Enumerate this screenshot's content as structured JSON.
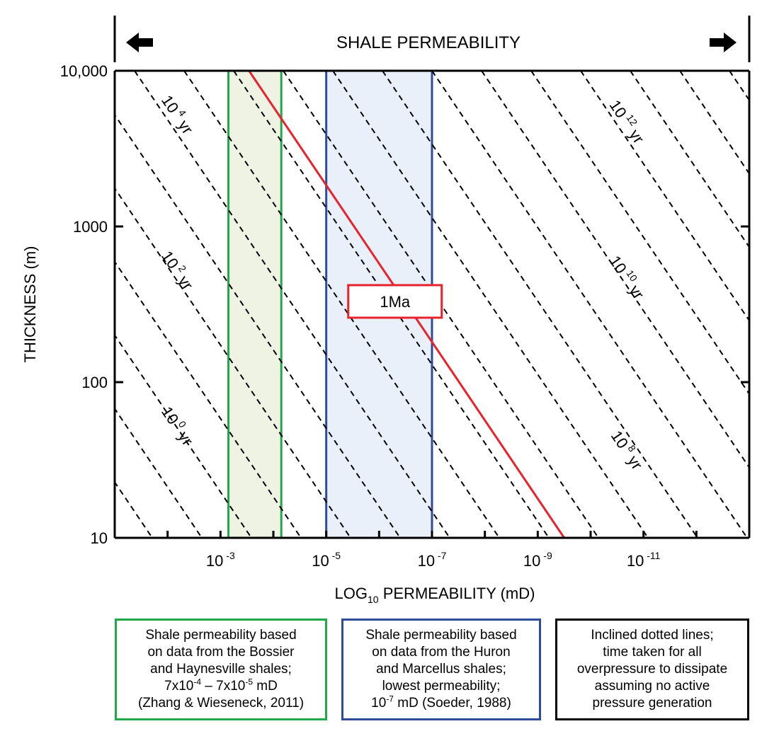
{
  "chart_data": {
    "type": "line",
    "title": "SHALE PERMEABILITY",
    "xlabel": "LOG10 PERMEABILITY (mD)",
    "ylabel": "THICKNESS (m)",
    "x_scale": "log10 permeability exponent (decreasing to the right)",
    "xlim": [
      -1,
      -13
    ],
    "ylim": [
      10,
      10000
    ],
    "y_scale": "log",
    "x_ticks": [
      {
        "base": "10",
        "exp": "-3",
        "value": -3
      },
      {
        "base": "10",
        "exp": "-5",
        "value": -5
      },
      {
        "base": "10",
        "exp": "-7",
        "value": -7
      },
      {
        "base": "10",
        "exp": "-9",
        "value": -9
      },
      {
        "base": "10",
        "exp": "-11",
        "value": -11
      }
    ],
    "y_ticks": [
      {
        "label": "10,000",
        "value": 10000
      },
      {
        "label": "1000",
        "value": 1000
      },
      {
        "label": "100",
        "value": 100
      },
      {
        "label": "10",
        "value": 10
      }
    ],
    "isochron_lines": {
      "style": "dashed",
      "description": "Inclined lines of equal dissipation time",
      "labels": [
        {
          "text": "10",
          "exp": "0",
          "unit": "yr",
          "x": -2.1,
          "y": 50
        },
        {
          "text": "10",
          "exp": "2",
          "unit": "yr",
          "x": -2.1,
          "y": 500
        },
        {
          "text": "10",
          "exp": "4",
          "unit": "yr",
          "x": -2.1,
          "y": 5000
        },
        {
          "text": "10",
          "exp": "8",
          "unit": "yr",
          "x": -10.6,
          "y": 35
        },
        {
          "text": "10",
          "exp": "10",
          "unit": "yr",
          "x": -10.6,
          "y": 450
        },
        {
          "text": "10",
          "exp": "12",
          "unit": "yr",
          "x": -10.6,
          "y": 4500
        }
      ]
    },
    "series": [
      {
        "name": "1Ma",
        "color": "#e8232b",
        "x": [
          -3.54,
          -9.5
        ],
        "y": [
          10000,
          10
        ]
      }
    ],
    "bands": [
      {
        "name": "Bossier & Haynesville shales",
        "x_range": [
          -3.15,
          -4.15
        ],
        "fill": "#eef3e4",
        "stroke": "#21a84a"
      },
      {
        "name": "Huron & Marcellus shales",
        "x_range": [
          -5.0,
          -7.0
        ],
        "fill": "#eaf0fa",
        "stroke": "#2f4c9a"
      }
    ],
    "annotation": {
      "text": "1Ma",
      "x": -6.3,
      "y": 330,
      "color": "#e8232b"
    }
  },
  "legend": {
    "green": {
      "lines": [
        "Shale permeability based",
        "on data from the Bossier",
        "and Haynesville shales;"
      ],
      "range_a_base": "7x10",
      "range_a_exp": "-4",
      "range_sep": " – ",
      "range_b_base": "7x10",
      "range_b_exp": "-5",
      "range_unit": " mD",
      "citation": "(Zhang & Wieseneck, 2011)",
      "color": "#21a84a"
    },
    "blue": {
      "lines": [
        "Shale permeability based",
        "on data from the Huron",
        "and Marcellus shales;",
        "lowest permeability;"
      ],
      "value_base": "10",
      "value_exp": "-7",
      "value_rest": " mD (Soeder, 1988)",
      "color": "#2f4c9a"
    },
    "black": {
      "lines": [
        "Inclined dotted lines;",
        "time taken for all",
        "overpressure to dissipate",
        "assuming no active",
        "pressure generation"
      ],
      "color": "#000000"
    }
  }
}
